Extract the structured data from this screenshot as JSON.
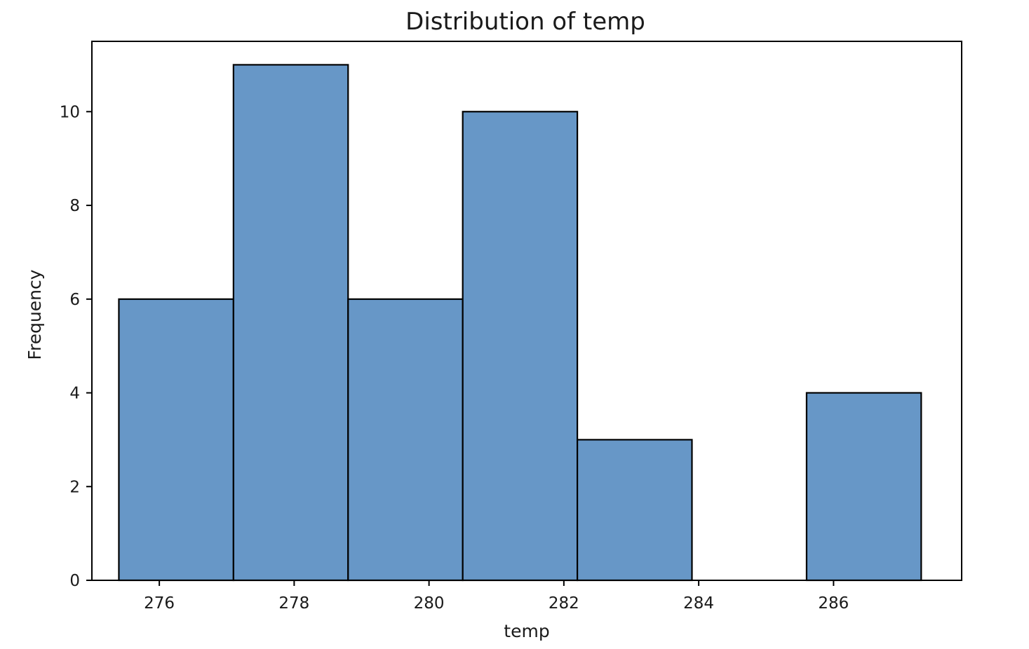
{
  "chart_data": {
    "type": "bar",
    "title": "Distribution of temp",
    "xlabel": "temp",
    "ylabel": "Frequency",
    "bin_edges": [
      275.4,
      277.1,
      278.8,
      280.5,
      282.2,
      283.9,
      285.6,
      287.3
    ],
    "values": [
      6,
      11,
      6,
      10,
      3,
      0,
      4
    ],
    "xlim": [
      275.0,
      287.9
    ],
    "ylim": [
      0,
      11.5
    ],
    "xticks": [
      276,
      278,
      280,
      282,
      284,
      286
    ],
    "yticks": [
      0,
      2,
      4,
      6,
      8,
      10
    ],
    "xtick_labels": [
      "276",
      "278",
      "280",
      "282",
      "284",
      "286"
    ],
    "ytick_labels": [
      "0",
      "2",
      "4",
      "6",
      "8",
      "10"
    ],
    "grid": false,
    "bar_color": "#6797c7",
    "edge_color": "#000000"
  }
}
